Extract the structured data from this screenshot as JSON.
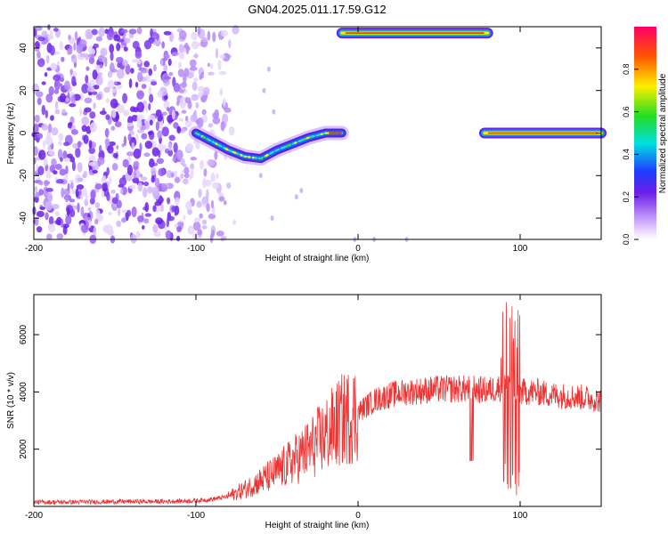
{
  "title": "GN04.2025.011.17.59.G12",
  "chart_data": [
    {
      "type": "heatmap",
      "xlabel": "Height of straight line (km)",
      "ylabel": "Frequency (Hz)",
      "xlim": [
        -200,
        150
      ],
      "ylim": [
        -50,
        50
      ],
      "xticks": [
        -200,
        -100,
        0,
        100
      ],
      "yticks": [
        -40,
        -20,
        0,
        20,
        40
      ],
      "colorbar": {
        "label": "Normalized spectral amplitude",
        "range": [
          0,
          1
        ],
        "ticks": [
          "0.0",
          "0.2",
          "0.4",
          "0.6",
          "0.8"
        ]
      },
      "features": [
        {
          "name": "noise",
          "x_range": [
            -200,
            -80
          ],
          "y_range": [
            -50,
            50
          ]
        },
        {
          "name": "descending_arc",
          "points": [
            [
              -100,
              0
            ],
            [
              -90,
              -4
            ],
            [
              -80,
              -8
            ],
            [
              -70,
              -11
            ],
            [
              -60,
              -12
            ],
            [
              -50,
              -8
            ],
            [
              -40,
              -5
            ],
            [
              -30,
              -2
            ],
            [
              -20,
              0
            ],
            [
              -10,
              0
            ]
          ]
        },
        {
          "name": "top_band",
          "x_range": [
            -10,
            80
          ],
          "y": 47
        },
        {
          "name": "zero_band",
          "x_range": [
            78,
            150
          ],
          "y": 0
        }
      ]
    },
    {
      "type": "line",
      "xlabel": "Height of straight line (km)",
      "ylabel": "SNR (10 * v/v)",
      "xlim": [
        -200,
        150
      ],
      "ylim": [
        0,
        7400
      ],
      "xticks": [
        -200,
        -100,
        0,
        100
      ],
      "yticks": [
        2000,
        4000,
        6000
      ],
      "series": [
        {
          "color": "#ee3333",
          "x": [
            -200,
            -180,
            -160,
            -140,
            -120,
            -100,
            -90,
            -80,
            -70,
            -60,
            -50,
            -40,
            -30,
            -20,
            -10,
            0,
            10,
            20,
            30,
            40,
            50,
            60,
            70,
            80,
            90,
            95,
            100,
            110,
            120,
            130,
            140,
            150
          ],
          "y": [
            150,
            150,
            160,
            170,
            170,
            200,
            250,
            350,
            600,
            900,
            1200,
            1600,
            2000,
            2500,
            3000,
            3300,
            3700,
            3900,
            4000,
            4050,
            4100,
            4100,
            4100,
            4050,
            4200,
            4100,
            4000,
            4000,
            3900,
            3850,
            3800,
            3700
          ]
        }
      ]
    }
  ]
}
